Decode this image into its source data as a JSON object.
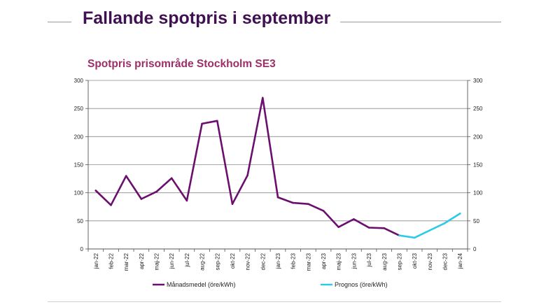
{
  "page": {
    "title": "Fallande spotpris i september"
  },
  "chart_data": {
    "type": "line",
    "title": "Spotpris prisområde Stockholm SE3",
    "xlabel": "",
    "ylabel": "",
    "categories": [
      "jan-22",
      "feb-22",
      "mar-22",
      "apr-22",
      "maj-22",
      "jun-22",
      "jul-22",
      "aug-22",
      "sep-22",
      "okt-22",
      "nov-22",
      "dec-22",
      "jan-23",
      "feb-23",
      "mar-23",
      "apr-23",
      "maj-23",
      "jun-23",
      "jul-23",
      "aug-23",
      "sep-23",
      "okt-23",
      "nov-23",
      "dec-23",
      "jan-24"
    ],
    "ylim": [
      0,
      300
    ],
    "yticks": [
      0,
      50,
      100,
      150,
      200,
      250,
      300
    ],
    "grid": true,
    "legend_position": "bottom",
    "series": [
      {
        "name": "Månadsmedel (öre/kWh)",
        "color": "#6b0f6e",
        "values": [
          104,
          78,
          130,
          89,
          102,
          126,
          86,
          223,
          228,
          80,
          131,
          269,
          92,
          82,
          80,
          68,
          39,
          53,
          38,
          37,
          24,
          null,
          null,
          null,
          null
        ]
      },
      {
        "name": "Prognos (öre/kWh)",
        "color": "#2ec9e8",
        "values": [
          null,
          null,
          null,
          null,
          null,
          null,
          null,
          null,
          null,
          null,
          null,
          null,
          null,
          null,
          null,
          null,
          null,
          null,
          null,
          null,
          24,
          20,
          33,
          46,
          63
        ]
      }
    ]
  }
}
